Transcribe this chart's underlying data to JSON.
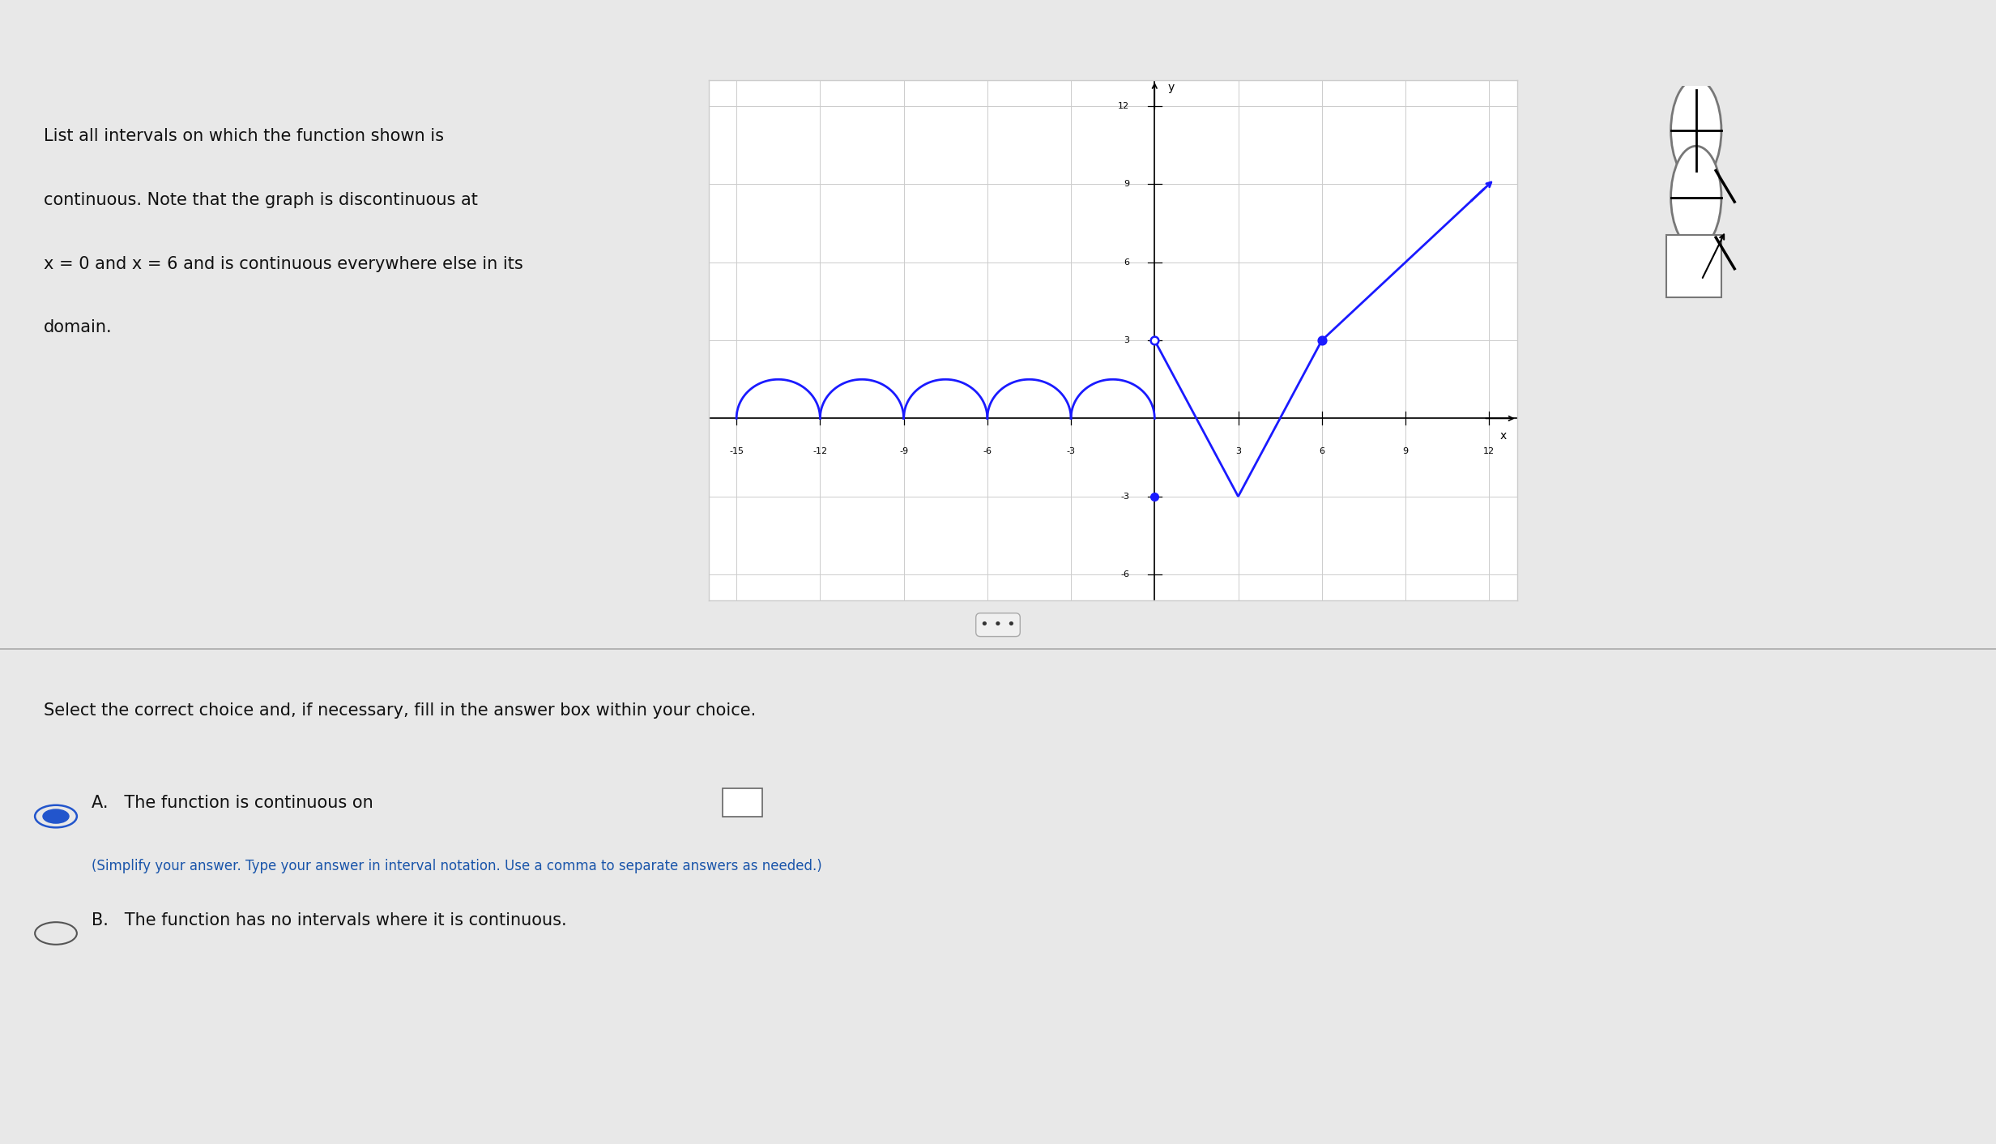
{
  "bg_color_top": "#3d6b5e",
  "bg_color_main": "#e8e8e8",
  "graph_xlim": [
    -16,
    13
  ],
  "graph_ylim": [
    -7,
    13
  ],
  "graph_xticks": [
    -15,
    -12,
    -9,
    -6,
    -3,
    3,
    6,
    9,
    12
  ],
  "graph_yticks": [
    -6,
    -3,
    3,
    6,
    9,
    12
  ],
  "graph_bg": "#ffffff",
  "graph_border": "#cccccc",
  "curve_color": "#1a1aff",
  "axis_color": "#000000",
  "grid_color": "#cccccc",
  "sidebar_color": "#c8b89a",
  "divider_color": "#aaaaaa",
  "option_a_color": "#2255cc",
  "option_b_dot_color": "#555555",
  "subtext_color": "#1a55aa",
  "text_color": "#111111"
}
